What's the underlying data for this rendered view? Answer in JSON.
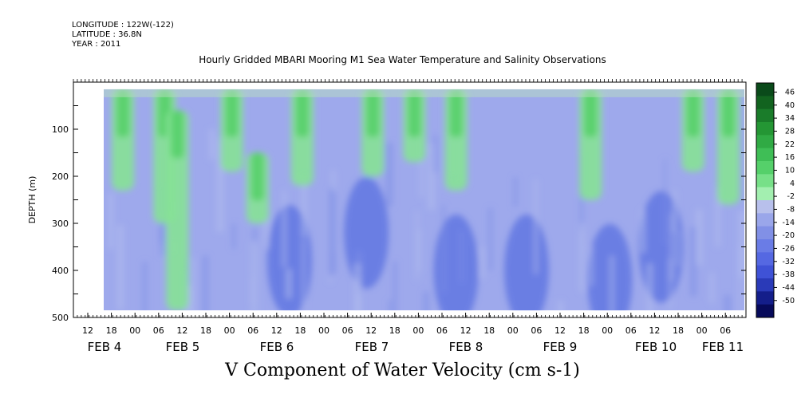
{
  "header": {
    "longitude": "LONGITUDE : 122W(-122)",
    "latitude": "LATITUDE : 36.8N",
    "year": "YEAR : 2011"
  },
  "chart_data": {
    "type": "heatmap",
    "title": "Hourly Gridded MBARI Mooring M1 Sea Water Temperature and Salinity Observations",
    "xlabel": "V Component of Water Velocity (cm s-1)",
    "ylabel": "DEPTH (m)",
    "y_axis": {
      "reversed": true,
      "range": [
        0,
        500
      ],
      "ticks": [
        100,
        200,
        300,
        400,
        500
      ]
    },
    "data_depth_range": [
      15,
      485
    ],
    "x_axis": {
      "hour_ticks": [
        "12",
        "18",
        "00",
        "06",
        "12",
        "18",
        "00",
        "06",
        "12",
        "18",
        "00",
        "06",
        "12",
        "18",
        "00",
        "06",
        "12",
        "18",
        "00",
        "06",
        "12",
        "18",
        "00",
        "06",
        "12",
        "18",
        "00",
        "06"
      ],
      "date_labels": [
        "FEB  4",
        "FEB  5",
        "FEB  6",
        "FEB  7",
        "FEB  8",
        "FEB  9",
        "FEB 10",
        "FEB 11"
      ]
    },
    "colorbar": {
      "levels": [
        "46",
        "40",
        "34",
        "28",
        "22",
        "16",
        "10",
        "4",
        "-2",
        "-8",
        "-14",
        "-20",
        "-26",
        "-32",
        "-38",
        "-44",
        "-50"
      ],
      "colors_top_to_bottom": [
        "#0a4a1a",
        "#12631f",
        "#1a7c2a",
        "#249634",
        "#30aa44",
        "#3fbe56",
        "#55d06a",
        "#77e088",
        "#a3efb0",
        "#b8c0ec",
        "#9aa6ea",
        "#8190e6",
        "#6a7ce6",
        "#5568e2",
        "#3f52d6",
        "#2a3ab8",
        "#141e8a",
        "#070a5a"
      ]
    },
    "field_pattern": {
      "green_columns": [
        {
          "x": 0.03,
          "top": 15,
          "bottom": 230
        },
        {
          "x": 0.095,
          "top": 15,
          "bottom": 300
        },
        {
          "x": 0.115,
          "top": 60,
          "bottom": 485
        },
        {
          "x": 0.2,
          "top": 15,
          "bottom": 190
        },
        {
          "x": 0.24,
          "top": 150,
          "bottom": 300
        },
        {
          "x": 0.31,
          "top": 15,
          "bottom": 220
        },
        {
          "x": 0.42,
          "top": 15,
          "bottom": 200
        },
        {
          "x": 0.485,
          "top": 15,
          "bottom": 170
        },
        {
          "x": 0.55,
          "top": 15,
          "bottom": 230
        },
        {
          "x": 0.76,
          "top": 15,
          "bottom": 250
        },
        {
          "x": 0.92,
          "top": 15,
          "bottom": 190
        },
        {
          "x": 0.975,
          "top": 15,
          "bottom": 260
        }
      ],
      "blue_cores": [
        {
          "x": 0.29,
          "depth": 380
        },
        {
          "x": 0.41,
          "depth": 320
        },
        {
          "x": 0.55,
          "depth": 400
        },
        {
          "x": 0.66,
          "depth": 400
        },
        {
          "x": 0.79,
          "depth": 420
        },
        {
          "x": 0.87,
          "depth": 350
        }
      ]
    }
  }
}
